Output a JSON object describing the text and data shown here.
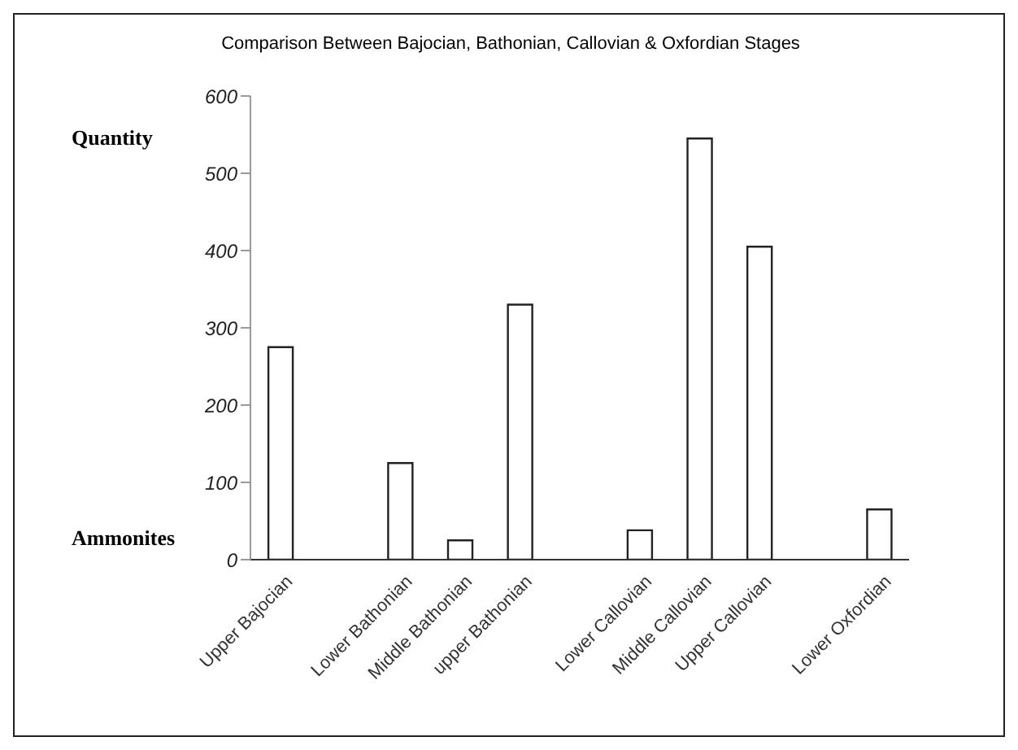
{
  "chart_data": {
    "type": "bar",
    "title": "Comparison Between Bajocian, Bathonian, Callovian & Oxfordian Stages",
    "ylabel": "Quantity",
    "annotations": [
      "Ammonites"
    ],
    "categories": [
      "Upper Bajocian",
      null,
      "Lower Bathonian",
      "Middle Bathonian",
      "upper Bathonian",
      null,
      "Lower Callovian",
      "Middle Callovian",
      "Upper Callovian",
      null,
      "Lower Oxfordian"
    ],
    "values": [
      275,
      null,
      125,
      25,
      330,
      null,
      38,
      545,
      405,
      null,
      65
    ],
    "color": "#ffffff",
    "ylim": [
      0,
      600
    ],
    "yticks": [
      0,
      100,
      200,
      300,
      400,
      500,
      600
    ]
  }
}
